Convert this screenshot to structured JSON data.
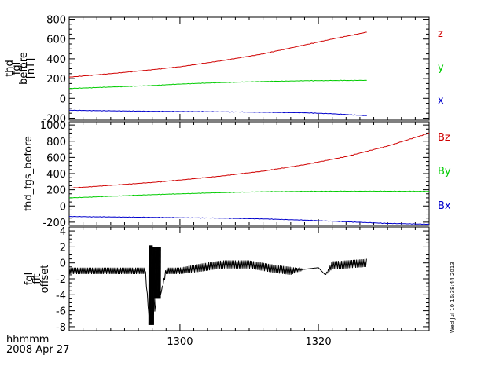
{
  "footer": {
    "time_label": "hhmmm",
    "date_label": "2008 Apr 27"
  },
  "timestamp": "Wed Jul 10 16:38:44 2013",
  "chart_data": [
    {
      "type": "line",
      "ylabel": [
        "thd",
        "fgl",
        "before",
        "[nT]"
      ],
      "xlim": [
        1284,
        1336
      ],
      "ylim": [
        -220,
        820
      ],
      "yticks": [
        -200,
        0,
        200,
        400,
        600,
        800
      ],
      "xticks": [
        1300,
        1320
      ],
      "xticklabels": [
        "",
        ""
      ],
      "legend_placement": "right",
      "series": [
        {
          "name": "z",
          "color": "#d00000",
          "x": [
            1284,
            1290,
            1296,
            1300,
            1306,
            1312,
            1318,
            1322,
            1327
          ],
          "values": [
            215,
            250,
            290,
            320,
            380,
            450,
            540,
            600,
            670
          ]
        },
        {
          "name": "y",
          "color": "#00cc00",
          "x": [
            1284,
            1290,
            1296,
            1300,
            1306,
            1312,
            1318,
            1322,
            1327
          ],
          "values": [
            100,
            115,
            130,
            145,
            160,
            170,
            178,
            180,
            182
          ]
        },
        {
          "name": "x",
          "color": "#0000cc",
          "x": [
            1284,
            1290,
            1296,
            1300,
            1306,
            1312,
            1318,
            1322,
            1327
          ],
          "values": [
            -120,
            -125,
            -130,
            -132,
            -135,
            -140,
            -145,
            -155,
            -175
          ]
        }
      ]
    },
    {
      "type": "line",
      "ylabel": [
        "thd_fgs_before"
      ],
      "xlim": [
        1284,
        1336
      ],
      "ylim": [
        -240,
        1040
      ],
      "yticks": [
        -200,
        0,
        200,
        400,
        600,
        800,
        1000
      ],
      "xticks": [
        1300,
        1320
      ],
      "xticklabels": [
        "",
        ""
      ],
      "legend_placement": "right",
      "series": [
        {
          "name": "Bz",
          "color": "#d00000",
          "x": [
            1284,
            1290,
            1296,
            1300,
            1306,
            1312,
            1318,
            1324,
            1330,
            1336
          ],
          "values": [
            220,
            255,
            290,
            320,
            370,
            430,
            510,
            610,
            740,
            900
          ]
        },
        {
          "name": "By",
          "color": "#00cc00",
          "x": [
            1284,
            1290,
            1296,
            1300,
            1306,
            1312,
            1318,
            1324,
            1330,
            1336
          ],
          "values": [
            100,
            120,
            140,
            150,
            165,
            175,
            180,
            182,
            182,
            180
          ]
        },
        {
          "name": "Bx",
          "color": "#0000cc",
          "x": [
            1284,
            1290,
            1296,
            1300,
            1306,
            1312,
            1318,
            1324,
            1330,
            1336
          ],
          "values": [
            -130,
            -135,
            -140,
            -145,
            -150,
            -160,
            -175,
            -195,
            -215,
            -225
          ]
        }
      ]
    },
    {
      "type": "line",
      "ylabel": [
        "fgl",
        "fit",
        "offset"
      ],
      "xlim": [
        1284,
        1336
      ],
      "ylim": [
        -8.5,
        4.5
      ],
      "yticks": [
        -8,
        -6,
        -4,
        -2,
        0,
        2,
        4
      ],
      "xticks": [
        1300,
        1320
      ],
      "xticklabels": [
        "1300",
        "1320"
      ],
      "series": [
        {
          "color": "#000000",
          "x": [
            1284,
            1290,
            1295,
            1295.6,
            1296,
            1296.4,
            1296.8,
            1297.2,
            1298,
            1300,
            1303,
            1306,
            1310,
            1314,
            1316,
            1318,
            1320,
            1321,
            1322,
            1324,
            1327
          ],
          "values": [
            -1.0,
            -1.0,
            -1.0,
            -7.5,
            2.0,
            -7.0,
            2.0,
            -4.0,
            -1.0,
            -1.0,
            -0.6,
            -0.2,
            -0.2,
            -0.8,
            -1.0,
            -0.8,
            -0.6,
            -1.5,
            -0.3,
            -0.2,
            0.0
          ],
          "oscillation": [
            0.4,
            0.4,
            0.4,
            0,
            0,
            0,
            0,
            0,
            0.4,
            0.4,
            0.5,
            0.5,
            0.5,
            0.5,
            0.5,
            0,
            0,
            0,
            0.5,
            0.5,
            0.5
          ]
        }
      ]
    }
  ]
}
